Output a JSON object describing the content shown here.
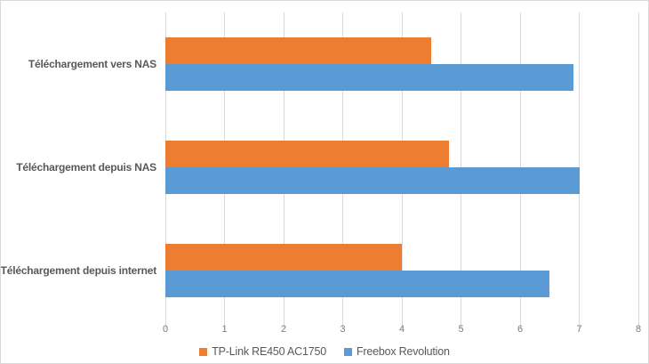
{
  "chart_data": {
    "type": "bar",
    "orientation": "horizontal",
    "title": "",
    "xlabel": "",
    "ylabel": "",
    "categories": [
      "Téléchargement vers NAS",
      "Téléchargement depuis NAS",
      "Téléchargement depuis internet"
    ],
    "series": [
      {
        "name": "TP-Link RE450 AC1750",
        "color": "#ED7D31",
        "values": [
          4.5,
          4.8,
          4.0
        ]
      },
      {
        "name": "Freebox Revolution",
        "color": "#5B9BD5",
        "values": [
          6.9,
          7.0,
          6.5
        ]
      }
    ],
    "x_axis": {
      "min": 0,
      "max": 8,
      "tick_interval": 1,
      "tick_labels": [
        "0",
        "1",
        "2",
        "3",
        "4",
        "5",
        "6",
        "7",
        "8"
      ]
    },
    "grid": true,
    "legend_position": "bottom-center"
  },
  "colors": {
    "background": "#FFFFFF",
    "chart_border": "#D9D9D9",
    "gridline": "#D9D9D9",
    "category_label": "#595959",
    "tick_label": "#7F7F7F",
    "legend_label": "#595959"
  }
}
